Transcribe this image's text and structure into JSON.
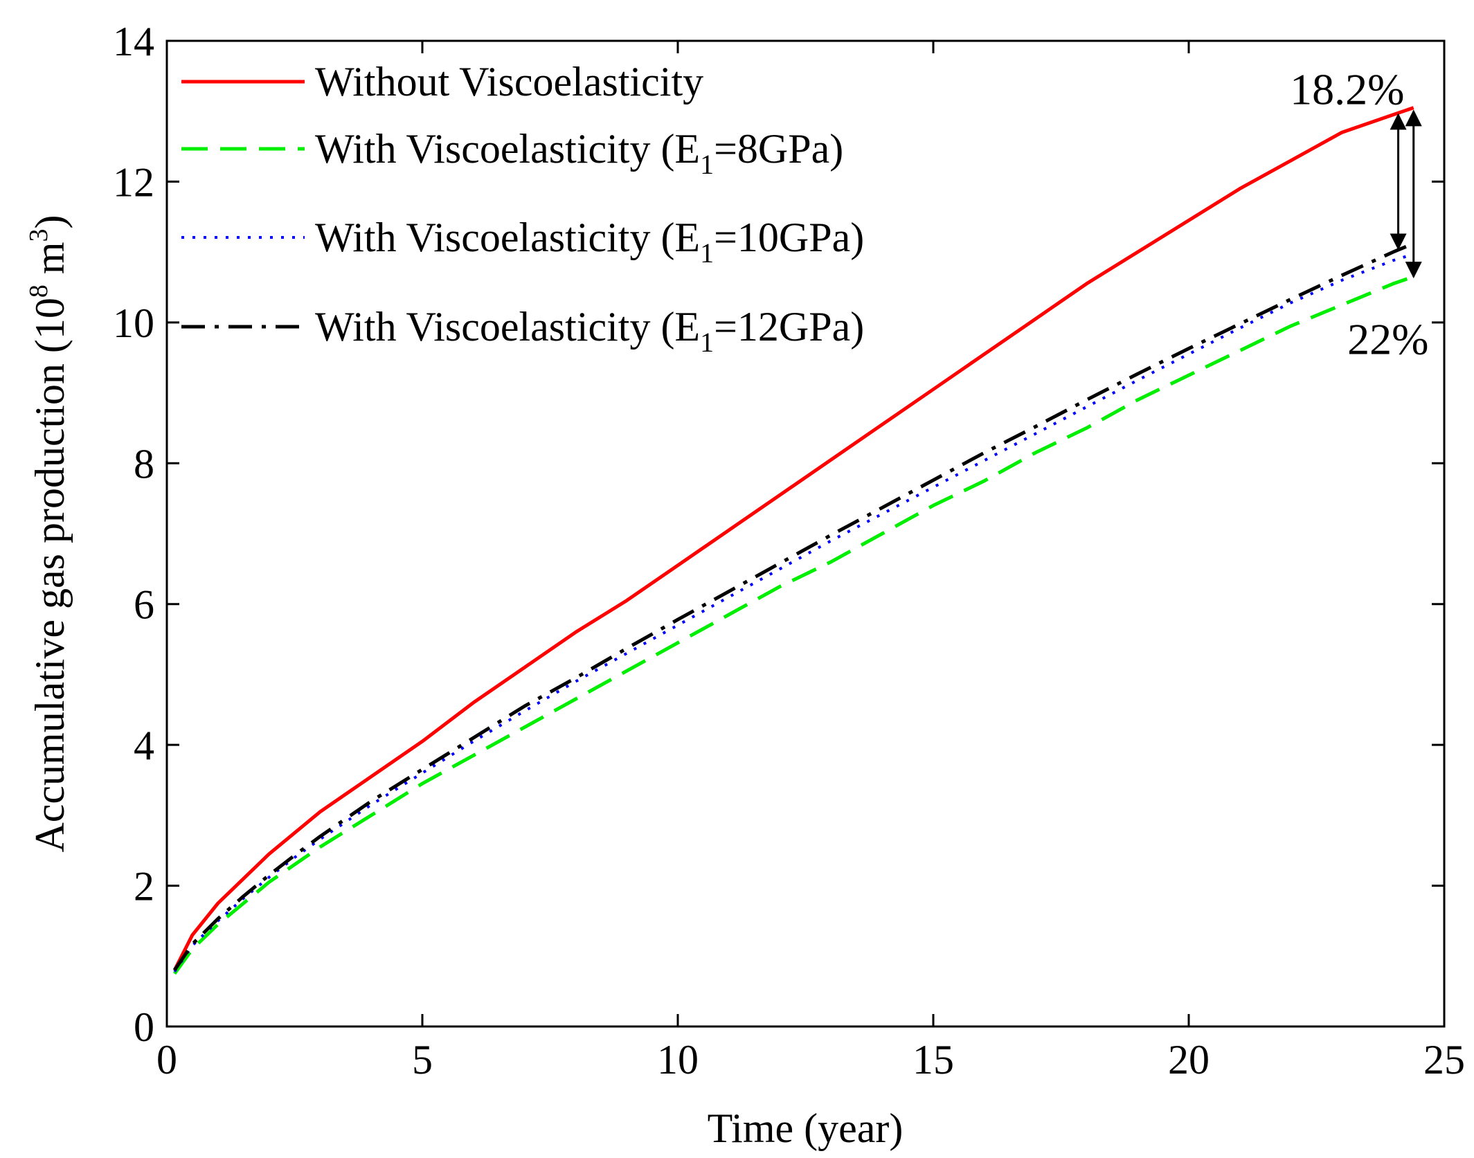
{
  "chart_data": {
    "type": "line",
    "title": "",
    "xlabel": "Time (year)",
    "ylabel_main": "Accumulative gas production (10",
    "ylabel_exp": "8",
    "ylabel_mid": " m",
    "ylabel_exp2": "3",
    "ylabel_end": ")",
    "xlim": [
      0,
      25
    ],
    "ylim": [
      0,
      14
    ],
    "xticks": [
      0,
      5,
      10,
      15,
      20,
      25
    ],
    "yticks": [
      0,
      2,
      4,
      6,
      8,
      10,
      12,
      14
    ],
    "grid": false,
    "legend_position": "top-left",
    "series": [
      {
        "name": "Without Viscoelasticity",
        "legend_text": "Without Viscoelasticity",
        "color": "#ff0000",
        "style": "solid",
        "x": [
          0.15,
          0.5,
          1,
          1.5,
          2,
          2.5,
          3,
          4,
          5,
          6,
          7,
          8,
          9,
          10,
          11,
          12,
          13,
          14,
          15,
          16,
          17,
          18,
          19,
          20,
          21,
          22,
          23,
          24,
          24.4
        ],
        "y": [
          0.8,
          1.3,
          1.75,
          2.1,
          2.45,
          2.75,
          3.05,
          3.55,
          4.05,
          4.6,
          5.1,
          5.6,
          6.05,
          6.55,
          7.05,
          7.55,
          8.05,
          8.55,
          9.05,
          9.55,
          10.05,
          10.55,
          11.0,
          11.45,
          11.9,
          12.3,
          12.7,
          12.95,
          13.05
        ]
      },
      {
        "name": "With Viscoelasticity (E1=8GPa)",
        "legend_text": "With Viscoelasticity (E",
        "legend_sub": "1",
        "legend_end": "=8GPa)",
        "color": "#00ee00",
        "style": "dashed",
        "x": [
          0.15,
          0.5,
          1,
          1.5,
          2,
          2.5,
          3,
          4,
          5,
          6,
          7,
          8,
          9,
          10,
          11,
          12,
          13,
          14,
          15,
          16,
          17,
          18,
          19,
          20,
          21,
          22,
          23,
          24,
          24.4
        ],
        "y": [
          0.75,
          1.1,
          1.45,
          1.75,
          2.05,
          2.3,
          2.55,
          3.0,
          3.45,
          3.85,
          4.25,
          4.65,
          5.05,
          5.45,
          5.85,
          6.25,
          6.6,
          7.0,
          7.4,
          7.75,
          8.15,
          8.5,
          8.9,
          9.25,
          9.6,
          9.95,
          10.25,
          10.55,
          10.65
        ]
      },
      {
        "name": "With Viscoelasticity (E1=10GPa)",
        "legend_text": "With Viscoelasticity (E",
        "legend_sub": "1",
        "legend_end": "=10GPa)",
        "color": "#0000ff",
        "style": "dotted",
        "x": [
          0.15,
          0.5,
          1,
          1.5,
          2,
          2.5,
          3,
          4,
          5,
          6,
          7,
          8,
          9,
          10,
          11,
          12,
          13,
          14,
          15,
          16,
          17,
          18,
          19,
          20,
          21,
          22,
          23,
          24,
          24.4
        ],
        "y": [
          0.78,
          1.15,
          1.5,
          1.82,
          2.12,
          2.4,
          2.66,
          3.15,
          3.6,
          4.05,
          4.48,
          4.9,
          5.3,
          5.7,
          6.1,
          6.5,
          6.9,
          7.28,
          7.66,
          8.04,
          8.42,
          8.8,
          9.18,
          9.55,
          9.92,
          10.28,
          10.6,
          10.88,
          10.97
        ]
      },
      {
        "name": "With Viscoelasticity (E1=12GPa)",
        "legend_text": "With Viscoelasticity (E",
        "legend_sub": "1",
        "legend_end": "=12GPa)",
        "color": "#000000",
        "style": "dashdot",
        "x": [
          0.15,
          0.5,
          1,
          1.5,
          2,
          2.5,
          3,
          4,
          5,
          6,
          7,
          8,
          9,
          10,
          11,
          12,
          13,
          14,
          15,
          16,
          17,
          18,
          19,
          20,
          21,
          22,
          23,
          24,
          24.4
        ],
        "y": [
          0.8,
          1.17,
          1.53,
          1.85,
          2.15,
          2.43,
          2.7,
          3.2,
          3.65,
          4.1,
          4.55,
          4.95,
          5.37,
          5.78,
          6.18,
          6.58,
          6.98,
          7.37,
          7.76,
          8.15,
          8.52,
          8.9,
          9.27,
          9.63,
          9.98,
          10.33,
          10.67,
          11.0,
          11.12
        ]
      }
    ],
    "annotations": [
      {
        "text": "18.2%",
        "x": 23.1,
        "y": 13.1
      },
      {
        "text": "22%",
        "x": 23.9,
        "y": 9.55
      }
    ],
    "arrows": [
      {
        "x": 24.1,
        "from": 12.95,
        "to": 11.05
      },
      {
        "x": 24.4,
        "from": 13.0,
        "to": 10.65
      }
    ]
  }
}
